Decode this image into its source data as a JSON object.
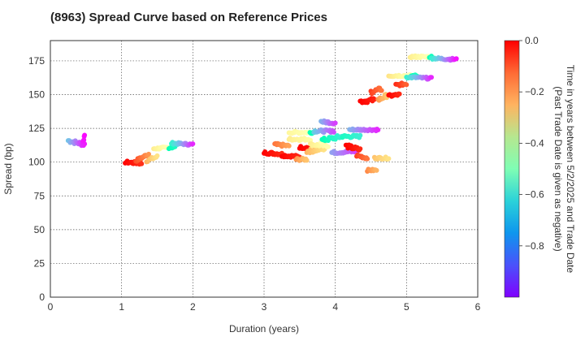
{
  "chart_data": {
    "type": "scatter",
    "title": "(8963)   Spread Curve based on Reference Prices",
    "xlabel": "Duration (years)",
    "ylabel": "Spread (bp)",
    "xlim": [
      0,
      6
    ],
    "ylim": [
      0,
      190
    ],
    "xticks": [
      0,
      1,
      2,
      3,
      4,
      5,
      6
    ],
    "yticks": [
      0,
      25,
      50,
      75,
      100,
      125,
      150,
      175
    ],
    "grid": true,
    "colorbar": {
      "label_line1": "Time in years between 5/2/2025 and Trade Date",
      "label_line2": "(Past Trade Date is given as negative)",
      "range": [
        -1.0,
        0.0
      ],
      "ticks": [
        0.0,
        -0.2,
        -0.4,
        -0.6,
        -0.8
      ],
      "tick_labels": [
        "0.0",
        "−0.2",
        "−0.4",
        "−0.6",
        "−0.8"
      ],
      "colormap": "rainbow"
    },
    "series": [
      {
        "x_start": 0.25,
        "x_end": 0.48,
        "y_start": 116,
        "y_end": 113,
        "c_start": -0.72,
        "c_end": -0.97,
        "jitter": 1.5
      },
      {
        "x_start": 0.45,
        "x_end": 0.48,
        "y_start": 114,
        "y_end": 119,
        "c_start": -0.95,
        "c_end": -0.99,
        "jitter": 1
      },
      {
        "x_start": 1.05,
        "x_end": 1.28,
        "y_start": 100,
        "y_end": 99,
        "c_start": 0.0,
        "c_end": -0.06,
        "jitter": 1
      },
      {
        "x_start": 1.2,
        "x_end": 1.38,
        "y_start": 101,
        "y_end": 106,
        "c_start": -0.1,
        "c_end": -0.2,
        "jitter": 1
      },
      {
        "x_start": 1.35,
        "x_end": 1.5,
        "y_start": 101,
        "y_end": 104,
        "c_start": -0.25,
        "c_end": -0.35,
        "jitter": 1
      },
      {
        "x_start": 1.45,
        "x_end": 1.75,
        "y_start": 110,
        "y_end": 111,
        "c_start": -0.38,
        "c_end": -0.55,
        "jitter": 0.8
      },
      {
        "x_start": 1.7,
        "x_end": 2.0,
        "y_start": 114,
        "y_end": 113,
        "c_start": -0.6,
        "c_end": -0.95,
        "jitter": 0.8
      },
      {
        "x_start": 3.0,
        "x_end": 3.25,
        "y_start": 107,
        "y_end": 106,
        "c_start": 0.0,
        "c_end": -0.05,
        "jitter": 1
      },
      {
        "x_start": 3.25,
        "x_end": 3.5,
        "y_start": 105,
        "y_end": 104,
        "c_start": 0.0,
        "c_end": -0.05,
        "jitter": 1
      },
      {
        "x_start": 3.5,
        "x_end": 3.85,
        "y_start": 111,
        "y_end": 110,
        "c_start": 0.0,
        "c_end": -0.06,
        "jitter": 1
      },
      {
        "x_start": 3.15,
        "x_end": 3.35,
        "y_start": 113,
        "y_end": 112,
        "c_start": -0.15,
        "c_end": -0.22,
        "jitter": 1
      },
      {
        "x_start": 3.45,
        "x_end": 3.6,
        "y_start": 102,
        "y_end": 102,
        "c_start": -0.2,
        "c_end": -0.28,
        "jitter": 1
      },
      {
        "x_start": 3.6,
        "x_end": 3.85,
        "y_start": 108,
        "y_end": 110,
        "c_start": -0.25,
        "c_end": -0.35,
        "jitter": 1.5
      },
      {
        "x_start": 3.35,
        "x_end": 3.65,
        "y_start": 117,
        "y_end": 117,
        "c_start": -0.38,
        "c_end": -0.45,
        "jitter": 1
      },
      {
        "x_start": 3.65,
        "x_end": 3.9,
        "y_start": 113,
        "y_end": 112,
        "c_start": -0.38,
        "c_end": -0.48,
        "jitter": 1
      },
      {
        "x_start": 3.8,
        "x_end": 4.1,
        "y_start": 116,
        "y_end": 119,
        "c_start": -0.5,
        "c_end": -0.62,
        "jitter": 1.5
      },
      {
        "x_start": 4.1,
        "x_end": 4.35,
        "y_start": 119,
        "y_end": 119,
        "c_start": -0.55,
        "c_end": -0.62,
        "jitter": 1
      },
      {
        "x_start": 3.35,
        "x_end": 3.7,
        "y_start": 122,
        "y_end": 122,
        "c_start": -0.42,
        "c_end": -0.52,
        "jitter": 0.8
      },
      {
        "x_start": 3.7,
        "x_end": 3.98,
        "y_start": 123,
        "y_end": 123,
        "c_start": -0.7,
        "c_end": -0.9,
        "jitter": 1
      },
      {
        "x_start": 3.8,
        "x_end": 4.0,
        "y_start": 130,
        "y_end": 129,
        "c_start": -0.75,
        "c_end": -0.92,
        "jitter": 1
      },
      {
        "x_start": 3.95,
        "x_end": 4.3,
        "y_start": 107,
        "y_end": 108,
        "c_start": -0.78,
        "c_end": -0.92,
        "jitter": 1
      },
      {
        "x_start": 4.2,
        "x_end": 4.6,
        "y_start": 124,
        "y_end": 124,
        "c_start": -0.75,
        "c_end": -0.95,
        "jitter": 0.8
      },
      {
        "x_start": 4.15,
        "x_end": 4.35,
        "y_start": 112,
        "y_end": 109,
        "c_start": 0.0,
        "c_end": -0.05,
        "jitter": 1.5
      },
      {
        "x_start": 4.3,
        "x_end": 4.45,
        "y_start": 105,
        "y_end": 103,
        "c_start": -0.08,
        "c_end": -0.15,
        "jitter": 1
      },
      {
        "x_start": 4.45,
        "x_end": 4.58,
        "y_start": 94,
        "y_end": 94,
        "c_start": -0.18,
        "c_end": -0.25,
        "jitter": 0.8
      },
      {
        "x_start": 4.55,
        "x_end": 4.75,
        "y_start": 103,
        "y_end": 103,
        "c_start": -0.28,
        "c_end": -0.35,
        "jitter": 0.8
      },
      {
        "x_start": 4.35,
        "x_end": 4.55,
        "y_start": 145,
        "y_end": 146,
        "c_start": 0.0,
        "c_end": -0.04,
        "jitter": 1.5
      },
      {
        "x_start": 4.5,
        "x_end": 4.65,
        "y_start": 152,
        "y_end": 154,
        "c_start": -0.08,
        "c_end": -0.15,
        "jitter": 1.5
      },
      {
        "x_start": 4.6,
        "x_end": 4.75,
        "y_start": 146,
        "y_end": 150,
        "c_start": -0.2,
        "c_end": -0.3,
        "jitter": 1.5
      },
      {
        "x_start": 4.75,
        "x_end": 4.9,
        "y_start": 149,
        "y_end": 150,
        "c_start": 0.0,
        "c_end": -0.05,
        "jitter": 1
      },
      {
        "x_start": 4.85,
        "x_end": 5.0,
        "y_start": 157,
        "y_end": 158,
        "c_start": -0.05,
        "c_end": -0.12,
        "jitter": 1
      },
      {
        "x_start": 4.75,
        "x_end": 5.15,
        "y_start": 164,
        "y_end": 164,
        "c_start": -0.35,
        "c_end": -0.55,
        "jitter": 0.8
      },
      {
        "x_start": 5.0,
        "x_end": 5.35,
        "y_start": 163,
        "y_end": 162,
        "c_start": -0.6,
        "c_end": -0.95,
        "jitter": 0.8
      },
      {
        "x_start": 5.05,
        "x_end": 5.35,
        "y_start": 178,
        "y_end": 178,
        "c_start": -0.38,
        "c_end": -0.52,
        "jitter": 0.8
      },
      {
        "x_start": 5.35,
        "x_end": 5.7,
        "y_start": 177,
        "y_end": 176,
        "c_start": -0.6,
        "c_end": -0.98,
        "jitter": 0.8
      }
    ]
  }
}
